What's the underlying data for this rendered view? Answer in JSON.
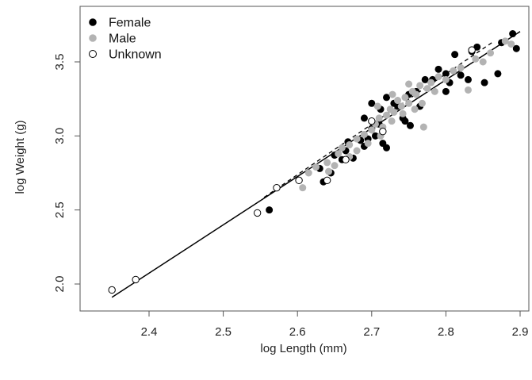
{
  "chart_data": {
    "type": "scatter",
    "xlabel": "log Length (mm)",
    "ylabel": "log Weight (g)",
    "xlim": [
      2.33,
      2.9
    ],
    "ylim": [
      1.9,
      3.73
    ],
    "x_ticks": [
      2.4,
      2.5,
      2.6,
      2.7,
      2.8,
      2.9
    ],
    "x_tick_labels": [
      "2.4",
      "2.5",
      "2.6",
      "2.7",
      "2.8",
      "2.9"
    ],
    "y_ticks": [
      2.0,
      2.5,
      3.0,
      3.5
    ],
    "y_tick_labels": [
      "2.0",
      "2.5",
      "3.0",
      "3.5"
    ],
    "grid": false,
    "legend_position": "top-left",
    "series": [
      {
        "name": "Female",
        "color": "#000000",
        "marker": "filled-circle",
        "points": [
          [
            2.562,
            2.5
          ],
          [
            2.63,
            2.78
          ],
          [
            2.635,
            2.69
          ],
          [
            2.645,
            2.75
          ],
          [
            2.66,
            2.84
          ],
          [
            2.665,
            2.9
          ],
          [
            2.668,
            2.96
          ],
          [
            2.675,
            2.85
          ],
          [
            2.685,
            2.97
          ],
          [
            2.69,
            2.93
          ],
          [
            2.695,
            2.98
          ],
          [
            2.7,
            3.05
          ],
          [
            2.705,
            3.0
          ],
          [
            2.71,
            3.08
          ],
          [
            2.715,
            2.95
          ],
          [
            2.72,
            2.92
          ],
          [
            2.712,
            3.18
          ],
          [
            2.73,
            3.22
          ],
          [
            2.735,
            3.2
          ],
          [
            2.742,
            3.12
          ],
          [
            2.75,
            3.28
          ],
          [
            2.752,
            3.07
          ],
          [
            2.76,
            3.3
          ],
          [
            2.765,
            3.2
          ],
          [
            2.772,
            3.38
          ],
          [
            2.782,
            3.38
          ],
          [
            2.79,
            3.45
          ],
          [
            2.8,
            3.42
          ],
          [
            2.805,
            3.36
          ],
          [
            2.812,
            3.55
          ],
          [
            2.82,
            3.41
          ],
          [
            2.83,
            3.38
          ],
          [
            2.835,
            3.57
          ],
          [
            2.842,
            3.6
          ],
          [
            2.852,
            3.36
          ],
          [
            2.87,
            3.42
          ],
          [
            2.875,
            3.63
          ],
          [
            2.89,
            3.69
          ],
          [
            2.895,
            3.59
          ],
          [
            2.7,
            3.22
          ],
          [
            2.72,
            3.26
          ],
          [
            2.69,
            3.12
          ],
          [
            2.65,
            2.87
          ],
          [
            2.745,
            3.1
          ],
          [
            2.8,
            3.3
          ]
        ]
      },
      {
        "name": "Male",
        "color": "#b3b3b3",
        "marker": "filled-circle",
        "points": [
          [
            2.607,
            2.65
          ],
          [
            2.615,
            2.75
          ],
          [
            2.625,
            2.79
          ],
          [
            2.64,
            2.82
          ],
          [
            2.655,
            2.88
          ],
          [
            2.66,
            2.92
          ],
          [
            2.67,
            2.94
          ],
          [
            2.68,
            2.98
          ],
          [
            2.69,
            3.01
          ],
          [
            2.7,
            3.04
          ],
          [
            2.705,
            3.08
          ],
          [
            2.71,
            3.12
          ],
          [
            2.715,
            3.06
          ],
          [
            2.72,
            3.14
          ],
          [
            2.725,
            3.18
          ],
          [
            2.73,
            3.16
          ],
          [
            2.735,
            3.24
          ],
          [
            2.74,
            3.2
          ],
          [
            2.745,
            3.26
          ],
          [
            2.75,
            3.22
          ],
          [
            2.755,
            3.3
          ],
          [
            2.76,
            3.28
          ],
          [
            2.765,
            3.34
          ],
          [
            2.77,
            3.06
          ],
          [
            2.775,
            3.32
          ],
          [
            2.78,
            3.36
          ],
          [
            2.785,
            3.3
          ],
          [
            2.79,
            3.4
          ],
          [
            2.8,
            3.38
          ],
          [
            2.81,
            3.44
          ],
          [
            2.82,
            3.46
          ],
          [
            2.83,
            3.31
          ],
          [
            2.84,
            3.52
          ],
          [
            2.85,
            3.5
          ],
          [
            2.86,
            3.56
          ],
          [
            2.88,
            3.64
          ],
          [
            2.888,
            3.62
          ],
          [
            2.65,
            2.8
          ],
          [
            2.68,
            2.9
          ],
          [
            2.695,
            2.95
          ],
          [
            2.712,
            3.0
          ],
          [
            2.727,
            3.1
          ],
          [
            2.742,
            3.15
          ],
          [
            2.758,
            3.18
          ],
          [
            2.768,
            3.22
          ],
          [
            2.728,
            3.28
          ],
          [
            2.708,
            3.2
          ],
          [
            2.67,
            2.86
          ],
          [
            2.642,
            2.76
          ],
          [
            2.75,
            3.35
          ]
        ]
      },
      {
        "name": "Unknown",
        "color": "#000000",
        "marker": "open-circle",
        "points": [
          [
            2.35,
            1.96
          ],
          [
            2.382,
            2.03
          ],
          [
            2.546,
            2.48
          ],
          [
            2.572,
            2.65
          ],
          [
            2.602,
            2.7
          ],
          [
            2.64,
            2.7
          ],
          [
            2.665,
            2.84
          ],
          [
            2.715,
            3.03
          ],
          [
            2.7,
            3.1
          ],
          [
            2.835,
            3.58
          ]
        ]
      }
    ],
    "fit_lines": [
      {
        "style": "solid",
        "color": "#000000",
        "points": [
          [
            2.35,
            1.91
          ],
          [
            2.9,
            3.705
          ]
        ]
      },
      {
        "style": "dashed",
        "color": "#000000",
        "points": [
          [
            2.555,
            2.585
          ],
          [
            2.865,
            3.64
          ]
        ]
      }
    ]
  }
}
